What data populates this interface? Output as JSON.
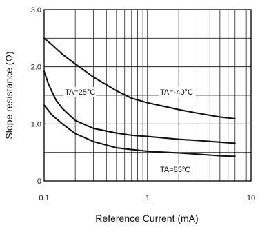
{
  "chart_data": {
    "type": "line",
    "xlabel": "Reference Current (mA)",
    "ylabel": "Slope resistance  (Ω)",
    "xscale": "log",
    "xlim": [
      0.1,
      10
    ],
    "ylim": [
      0,
      3.0
    ],
    "grid": true,
    "x_tick_labels": [
      "0.1",
      "1",
      "10"
    ],
    "y_tick_labels": [
      "0",
      "1.0",
      "2.0",
      "3.0"
    ],
    "series": [
      {
        "name": "TA=-40°C",
        "x": [
          0.1,
          0.12,
          0.15,
          0.2,
          0.3,
          0.5,
          0.7,
          1,
          2,
          3,
          5,
          7
        ],
        "y": [
          2.5,
          2.38,
          2.22,
          2.05,
          1.82,
          1.58,
          1.45,
          1.37,
          1.25,
          1.19,
          1.12,
          1.09
        ]
      },
      {
        "name": "TA=25°C",
        "x": [
          0.1,
          0.11,
          0.12,
          0.13,
          0.15,
          0.2,
          0.3,
          0.5,
          0.7,
          1,
          2,
          3,
          5,
          7
        ],
        "y": [
          1.92,
          1.7,
          1.55,
          1.42,
          1.27,
          1.06,
          0.92,
          0.84,
          0.8,
          0.78,
          0.73,
          0.71,
          0.68,
          0.66
        ]
      },
      {
        "name": "TA=85°C",
        "x": [
          0.1,
          0.12,
          0.15,
          0.2,
          0.3,
          0.5,
          0.7,
          1,
          2,
          3,
          5,
          7
        ],
        "y": [
          1.33,
          1.15,
          1.0,
          0.83,
          0.69,
          0.58,
          0.55,
          0.52,
          0.49,
          0.47,
          0.44,
          0.43
        ]
      }
    ]
  }
}
